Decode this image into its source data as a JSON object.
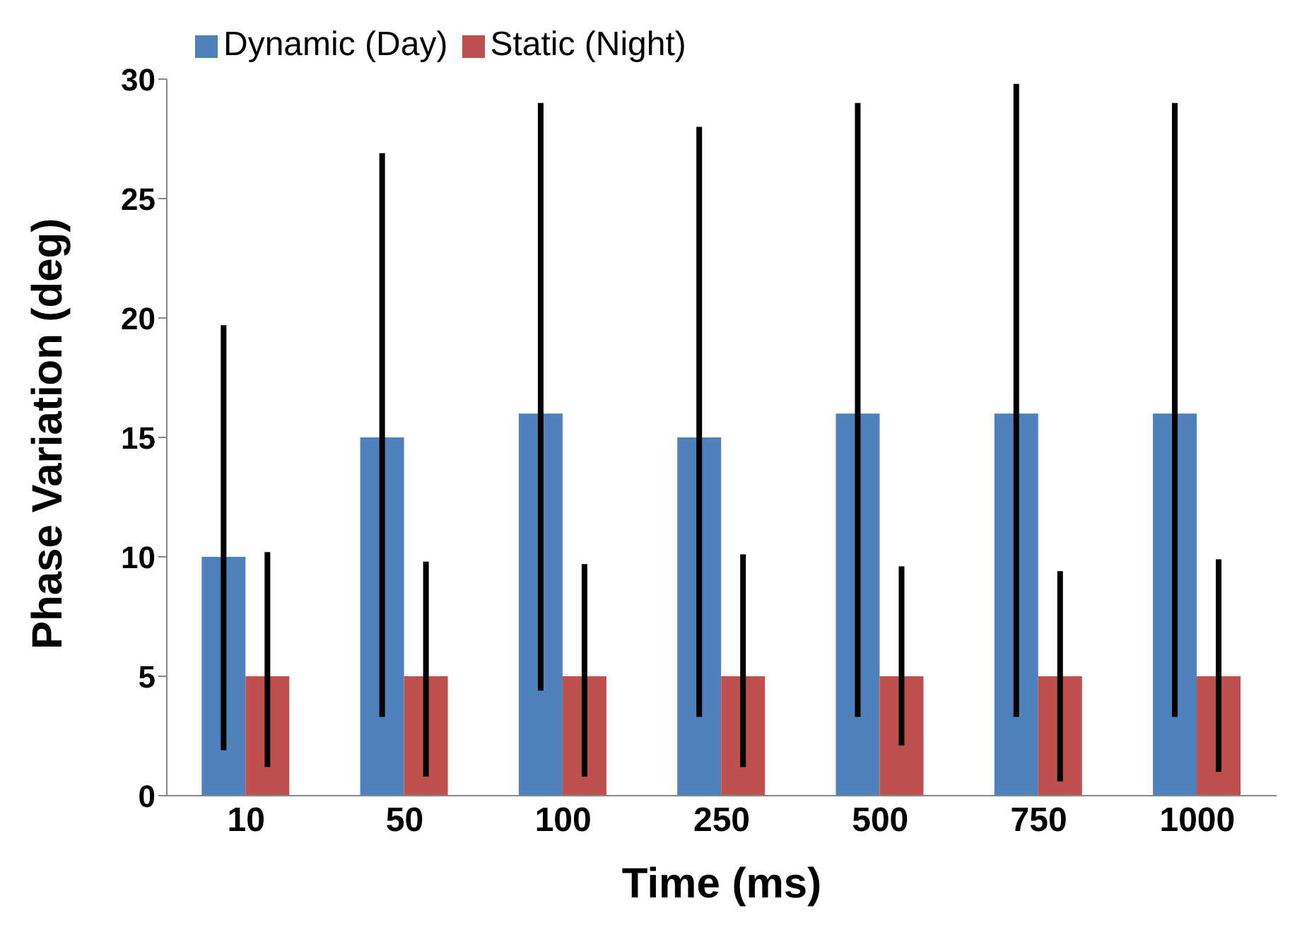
{
  "chart_data": {
    "type": "bar",
    "xlabel": "Time (ms)",
    "ylabel": "Phase Variation (deg)",
    "categories": [
      "10",
      "50",
      "100",
      "250",
      "500",
      "750",
      "1000"
    ],
    "series": [
      {
        "name": "Dynamic (Day)",
        "color": "#4f81bd",
        "values": [
          10,
          15,
          16,
          15,
          16,
          16,
          16
        ],
        "errors": [
          [
            1.9,
            19.7
          ],
          [
            3.3,
            26.9
          ],
          [
            4.4,
            29
          ],
          [
            3.3,
            28
          ],
          [
            3.3,
            29
          ],
          [
            3.3,
            29.8
          ],
          [
            3.3,
            29
          ]
        ]
      },
      {
        "name": "Static (Night)",
        "color": "#c0504d",
        "values": [
          5,
          5,
          5,
          5,
          5,
          5,
          5
        ],
        "errors": [
          [
            1.2,
            10.2
          ],
          [
            0.8,
            9.8
          ],
          [
            0.8,
            9.7
          ],
          [
            1.2,
            10.1
          ],
          [
            2.1,
            9.6
          ],
          [
            0.6,
            9.4
          ],
          [
            1,
            9.9
          ]
        ]
      }
    ],
    "ylim": [
      0,
      30
    ],
    "yticks": [
      0,
      5,
      10,
      15,
      20,
      25,
      30
    ],
    "grid": false,
    "legend": "top left"
  }
}
